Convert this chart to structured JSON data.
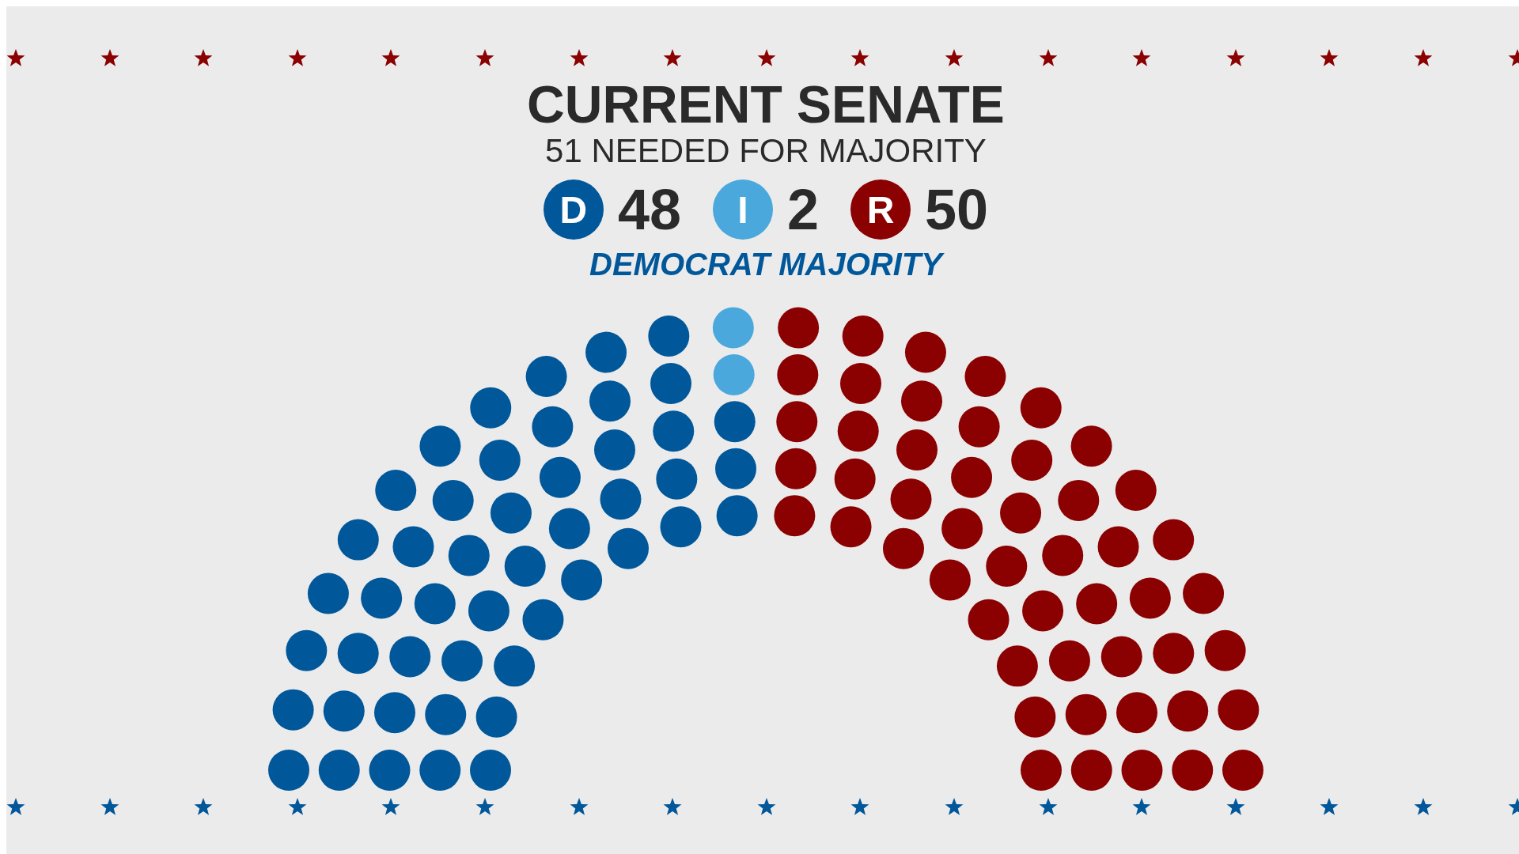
{
  "chart_data": {
    "type": "other",
    "title": "CURRENT SENATE",
    "subtitle": "51 NEEDED FOR MAJORITY",
    "categories": [
      "D",
      "I",
      "R"
    ],
    "values": [
      48,
      2,
      50
    ],
    "colors": [
      "#00579a",
      "#4aa8dc",
      "#8b0000"
    ],
    "data_labels": true,
    "annotations": [
      "DEMOCRAT MAJORITY"
    ]
  }
}
